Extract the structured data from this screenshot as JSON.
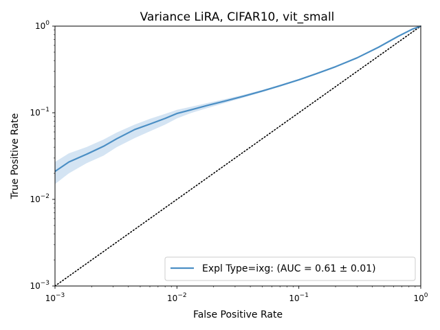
{
  "chart_data": {
    "type": "line",
    "title": "Variance LiRA, CIFAR10, vit_small",
    "xlabel": "False Positive Rate",
    "ylabel": "True Positive Rate",
    "xscale": "log",
    "yscale": "log",
    "xlim": [
      0.001,
      1
    ],
    "ylim": [
      0.001,
      1
    ],
    "x_ticks": [
      {
        "base": "10",
        "exp": "−3"
      },
      {
        "base": "10",
        "exp": "−2"
      },
      {
        "base": "10",
        "exp": "−1"
      },
      {
        "base": "10",
        "exp": "0"
      }
    ],
    "y_ticks": [
      {
        "base": "10",
        "exp": "−3"
      },
      {
        "base": "10",
        "exp": "−2"
      },
      {
        "base": "10",
        "exp": "−1"
      },
      {
        "base": "10",
        "exp": "0"
      }
    ],
    "grid": false,
    "legend_position": "bottom-right",
    "series": [
      {
        "name": "Expl Type=ixg: (AUC = 0.61 ± 0.01)",
        "color": "#4a8ec4",
        "band_color": "#c6dbef",
        "x": [
          0.001,
          0.0013,
          0.0018,
          0.0025,
          0.0032,
          0.0045,
          0.006,
          0.008,
          0.01,
          0.013,
          0.018,
          0.025,
          0.035,
          0.05,
          0.07,
          0.1,
          0.14,
          0.2,
          0.3,
          0.45,
          0.65,
          0.85,
          1.0
        ],
        "y": [
          0.021,
          0.027,
          0.033,
          0.041,
          0.05,
          0.064,
          0.074,
          0.086,
          0.098,
          0.108,
          0.122,
          0.137,
          0.155,
          0.178,
          0.205,
          0.24,
          0.283,
          0.34,
          0.43,
          0.57,
          0.76,
          0.92,
          1.0
        ],
        "y_lower": [
          0.015,
          0.02,
          0.026,
          0.032,
          0.04,
          0.051,
          0.061,
          0.073,
          0.086,
          0.099,
          0.114,
          0.13,
          0.149,
          0.173,
          0.2,
          0.235,
          0.278,
          0.335,
          0.425,
          0.565,
          0.755,
          0.915,
          1.0
        ],
        "y_upper": [
          0.027,
          0.034,
          0.04,
          0.049,
          0.059,
          0.073,
          0.085,
          0.097,
          0.108,
          0.117,
          0.13,
          0.144,
          0.161,
          0.183,
          0.21,
          0.245,
          0.288,
          0.345,
          0.435,
          0.575,
          0.765,
          0.925,
          1.0
        ]
      }
    ],
    "reference_line": {
      "style": "dotted",
      "color": "#000000",
      "x": [
        0.001,
        1
      ],
      "y": [
        0.001,
        1
      ]
    }
  }
}
